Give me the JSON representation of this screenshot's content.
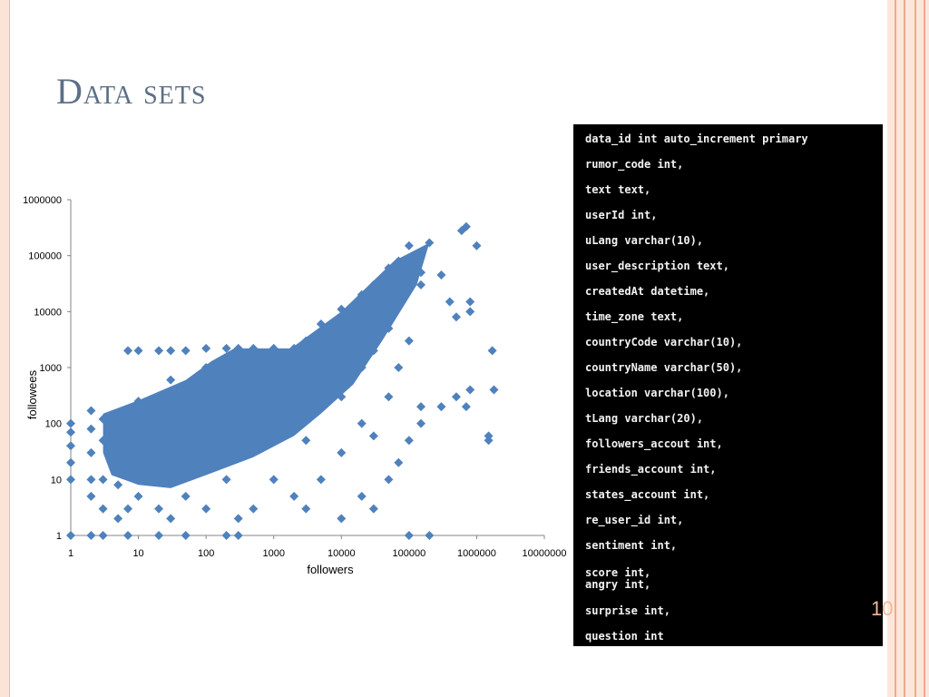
{
  "slide": {
    "title": "Data sets",
    "slide_number": "10"
  },
  "colors": {
    "title": "#5d6f86",
    "marker": "#4f81bd",
    "panel_background": "#000000",
    "panel_text": "#f2f2f2",
    "frame": "#f0a98a"
  },
  "code_panel": {
    "lines": [
      "data_id int auto_increment primary",
      "rumor_code int,",
      "text text,",
      "userId int,",
      "uLang varchar(10),",
      "user_description text,",
      "createdAt datetime,",
      "time_zone text,",
      "countryCode varchar(10),",
      "countryName varchar(50),",
      "location varchar(100),",
      "tLang varchar(20),",
      "followers_accout int,",
      "friends_account int,",
      "states_account int,",
      "re_user_id int,",
      "sentiment int,",
      "score int,",
      "angry int,",
      "surprise int,",
      "question int"
    ]
  },
  "chart_data": {
    "type": "scatter",
    "title": "",
    "xlabel": "followers",
    "ylabel": "followees",
    "x_scale": "log",
    "y_scale": "log",
    "xlim": [
      1,
      10000000
    ],
    "ylim": [
      1,
      1000000
    ],
    "x_ticks": [
      "1",
      "10",
      "100",
      "1000",
      "10000",
      "100000",
      "1000000",
      "10000000"
    ],
    "y_ticks": [
      "1",
      "10",
      "100",
      "1000",
      "10000",
      "100000",
      "1000000"
    ],
    "grid": false,
    "legend": "none",
    "marker": "diamond",
    "series": [
      {
        "points": [
          [
            1,
            1
          ],
          [
            1,
            10
          ],
          [
            1,
            20
          ],
          [
            1,
            40
          ],
          [
            1,
            70
          ],
          [
            1,
            100
          ],
          [
            2,
            1
          ],
          [
            2,
            5
          ],
          [
            2,
            10
          ],
          [
            2,
            30
          ],
          [
            2,
            80
          ],
          [
            2,
            170
          ],
          [
            3,
            1
          ],
          [
            3,
            3
          ],
          [
            3,
            10
          ],
          [
            3,
            50
          ],
          [
            3,
            120
          ],
          [
            5,
            2
          ],
          [
            5,
            8
          ],
          [
            5,
            40
          ],
          [
            5,
            150
          ],
          [
            7,
            1
          ],
          [
            7,
            3
          ],
          [
            7,
            20
          ],
          [
            7,
            100
          ],
          [
            7,
            2000
          ],
          [
            10,
            5
          ],
          [
            10,
            60
          ],
          [
            10,
            250
          ],
          [
            10,
            2000
          ],
          [
            20,
            1
          ],
          [
            20,
            3
          ],
          [
            20,
            30
          ],
          [
            20,
            300
          ],
          [
            20,
            2000
          ],
          [
            30,
            2
          ],
          [
            30,
            10
          ],
          [
            30,
            100
          ],
          [
            30,
            600
          ],
          [
            30,
            2000
          ],
          [
            50,
            1
          ],
          [
            50,
            5
          ],
          [
            50,
            50
          ],
          [
            50,
            500
          ],
          [
            50,
            2000
          ],
          [
            100,
            3
          ],
          [
            100,
            20
          ],
          [
            100,
            200
          ],
          [
            100,
            1000
          ],
          [
            100,
            2200
          ],
          [
            200,
            1
          ],
          [
            200,
            10
          ],
          [
            200,
            100
          ],
          [
            200,
            800
          ],
          [
            200,
            2200
          ],
          [
            300,
            1
          ],
          [
            300,
            2
          ],
          [
            300,
            30
          ],
          [
            300,
            400
          ],
          [
            300,
            2200
          ],
          [
            500,
            3
          ],
          [
            500,
            50
          ],
          [
            500,
            700
          ],
          [
            500,
            2200
          ],
          [
            1000,
            10
          ],
          [
            1000,
            100
          ],
          [
            1000,
            1000
          ],
          [
            1000,
            2200
          ],
          [
            2000,
            5
          ],
          [
            2000,
            80
          ],
          [
            2000,
            800
          ],
          [
            2000,
            2200
          ],
          [
            3000,
            3
          ],
          [
            3000,
            50
          ],
          [
            3000,
            500
          ],
          [
            3000,
            3000
          ],
          [
            5000,
            10
          ],
          [
            5000,
            200
          ],
          [
            5000,
            2000
          ],
          [
            5000,
            6000
          ],
          [
            10000,
            2
          ],
          [
            10000,
            30
          ],
          [
            10000,
            300
          ],
          [
            10000,
            5000
          ],
          [
            10000,
            11000
          ],
          [
            20000,
            5
          ],
          [
            20000,
            100
          ],
          [
            20000,
            1000
          ],
          [
            20000,
            20000
          ],
          [
            30000,
            3
          ],
          [
            30000,
            60
          ],
          [
            30000,
            2000
          ],
          [
            30000,
            30000
          ],
          [
            50000,
            10
          ],
          [
            50000,
            300
          ],
          [
            50000,
            5000
          ],
          [
            50000,
            60000
          ],
          [
            70000,
            20
          ],
          [
            70000,
            1000
          ],
          [
            70000,
            80000
          ],
          [
            100000,
            1
          ],
          [
            100000,
            50
          ],
          [
            100000,
            3000
          ],
          [
            100000,
            150000
          ],
          [
            150000,
            100
          ],
          [
            150000,
            200
          ],
          [
            150000,
            30000
          ],
          [
            150000,
            50000
          ],
          [
            200000,
            1
          ],
          [
            200000,
            170000
          ],
          [
            300000,
            200
          ],
          [
            300000,
            45000
          ],
          [
            400000,
            15000
          ],
          [
            500000,
            8000
          ],
          [
            500000,
            300
          ],
          [
            600000,
            280000
          ],
          [
            700000,
            200
          ],
          [
            700000,
            330000
          ],
          [
            800000,
            15000
          ],
          [
            800000,
            10000
          ],
          [
            800000,
            400
          ],
          [
            1000000,
            150000
          ],
          [
            1500000,
            60
          ],
          [
            1500000,
            50
          ],
          [
            1700000,
            2000
          ],
          [
            1800000,
            400
          ]
        ]
      }
    ]
  }
}
